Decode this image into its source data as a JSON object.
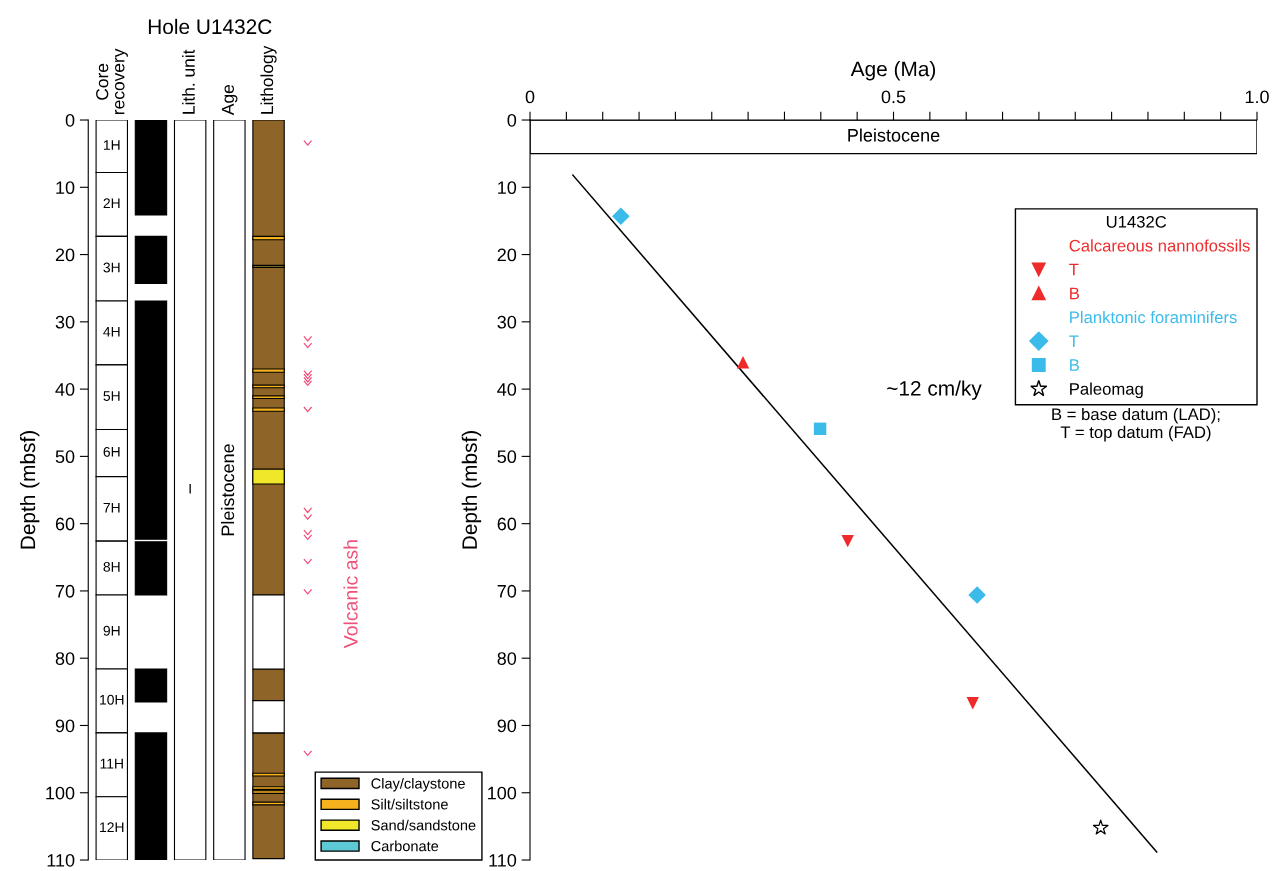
{
  "chart_data": [
    {
      "type": "bar",
      "title": "Hole U1432C",
      "ylabel": "Depth (mbsf)",
      "categories": [
        "Core\nrecovery",
        null,
        "Lith. unit",
        "Age",
        "Lithology",
        null
      ],
      "ylim": [
        110,
        0
      ],
      "yticks": [
        0,
        10,
        20,
        30,
        40,
        50,
        60,
        70,
        80,
        90,
        100,
        110
      ],
      "grid": false,
      "legend": "bottom right",
      "annotations": [
        "Volcanic ash",
        "1H",
        "2H",
        "3H",
        "4H",
        "5H",
        "6H",
        "7H",
        "8H",
        "9H",
        "10H",
        "11H",
        "12H"
      ],
      "series": [
        {
          "color": "#ffffff",
          "values": [
            7.8,
            null,
            null,
            null,
            null,
            null
          ],
          "base": [
            0,
            null,
            null,
            null,
            null,
            null
          ]
        },
        {
          "color": "#ffffff",
          "values": [
            9.5,
            null,
            null,
            null,
            null,
            null
          ],
          "base": [
            7.8,
            null,
            null,
            null,
            null,
            null
          ]
        },
        {
          "color": "#ffffff",
          "values": [
            9.6,
            null,
            null,
            null,
            null,
            null
          ],
          "base": [
            17.3,
            null,
            null,
            null,
            null,
            null
          ]
        },
        {
          "color": "#ffffff",
          "values": [
            9.5,
            null,
            null,
            null,
            null,
            null
          ],
          "base": [
            26.9,
            null,
            null,
            null,
            null,
            null
          ]
        },
        {
          "color": "#ffffff",
          "values": [
            9.6,
            null,
            null,
            null,
            null,
            null
          ],
          "base": [
            36.4,
            null,
            null,
            null,
            null,
            null
          ]
        },
        {
          "color": "#ffffff",
          "values": [
            7.0,
            null,
            null,
            null,
            null,
            null
          ],
          "base": [
            46.0,
            null,
            null,
            null,
            null,
            null
          ]
        },
        {
          "color": "#ffffff",
          "values": [
            9.6,
            null,
            null,
            null,
            null,
            null
          ],
          "base": [
            53.0,
            null,
            null,
            null,
            null,
            null
          ]
        },
        {
          "color": "#ffffff",
          "values": [
            8.0,
            null,
            null,
            null,
            null,
            null
          ],
          "base": [
            62.6,
            null,
            null,
            null,
            null,
            null
          ]
        },
        {
          "color": "#ffffff",
          "values": [
            11.0,
            null,
            null,
            null,
            null,
            null
          ],
          "base": [
            70.6,
            null,
            null,
            null,
            null,
            null
          ]
        },
        {
          "color": "#ffffff",
          "values": [
            9.5,
            null,
            null,
            null,
            null,
            null
          ],
          "base": [
            81.6,
            null,
            null,
            null,
            null,
            null
          ]
        },
        {
          "color": "#ffffff",
          "values": [
            9.5,
            null,
            null,
            null,
            null,
            null
          ],
          "base": [
            91.1,
            null,
            null,
            null,
            null,
            null
          ]
        },
        {
          "color": "#ffffff",
          "values": [
            9.4,
            null,
            null,
            null,
            null,
            null
          ],
          "base": [
            100.6,
            null,
            null,
            null,
            null,
            null
          ]
        },
        {
          "color": "#000000",
          "values": [
            null,
            14.1,
            null,
            null,
            null,
            null
          ],
          "base": [
            null,
            0,
            null,
            null,
            null,
            null
          ]
        },
        {
          "color": "#000000",
          "values": [
            null,
            7.0,
            null,
            null,
            null,
            null
          ],
          "base": [
            null,
            17.3,
            null,
            null,
            null,
            null
          ]
        },
        {
          "color": "#000000",
          "values": [
            null,
            35.4,
            null,
            null,
            null,
            null
          ],
          "base": [
            null,
            26.9,
            null,
            null,
            null,
            null
          ]
        },
        {
          "color": "#000000",
          "values": [
            null,
            7.9,
            null,
            null,
            null,
            null
          ],
          "base": [
            null,
            62.7,
            null,
            null,
            null,
            null
          ]
        },
        {
          "color": "#000000",
          "values": [
            null,
            4.9,
            null,
            null,
            null,
            null
          ],
          "base": [
            null,
            81.6,
            null,
            null,
            null,
            null
          ]
        },
        {
          "color": "#000000",
          "values": [
            null,
            18.9,
            null,
            null,
            null,
            null
          ],
          "base": [
            null,
            91.1,
            null,
            null,
            null,
            null
          ]
        },
        {
          "color": "#ffffff",
          "values": [
            null,
            null,
            110,
            null,
            null,
            null
          ],
          "base": [
            null,
            null,
            0,
            null,
            null,
            null
          ],
          "value_labels": [
            null,
            null,
            "I",
            null,
            null,
            null
          ]
        },
        {
          "color": "#ffffff",
          "values": [
            null,
            null,
            null,
            110,
            null,
            null
          ],
          "base": [
            null,
            null,
            null,
            0,
            null,
            null
          ],
          "value_labels": [
            null,
            null,
            null,
            "Pleistocene",
            null,
            null
          ]
        },
        {
          "name": "Clay/claystone",
          "color": "#8f6428",
          "values": [
            null,
            null,
            null,
            null,
            70.6,
            null
          ],
          "base": [
            null,
            null,
            null,
            null,
            0,
            null
          ]
        },
        {
          "color": "#8f6428",
          "values": [
            null,
            null,
            null,
            null,
            4.7,
            null
          ],
          "base": [
            null,
            null,
            null,
            null,
            81.6,
            null
          ]
        },
        {
          "color": "#8f6428",
          "values": [
            null,
            null,
            null,
            null,
            18.7,
            null
          ],
          "base": [
            null,
            null,
            null,
            null,
            91.1,
            null
          ]
        },
        {
          "color": "#ffffff",
          "values": [
            null,
            null,
            null,
            null,
            11.0,
            null
          ],
          "base": [
            null,
            null,
            null,
            null,
            70.6,
            null
          ]
        },
        {
          "color": "#ffffff",
          "values": [
            null,
            null,
            null,
            null,
            4.8,
            null
          ],
          "base": [
            null,
            null,
            null,
            null,
            86.3,
            null
          ]
        },
        {
          "name": "Silt/siltstone",
          "color": "#f5b21c",
          "values": [
            null,
            null,
            null,
            null,
            0.5,
            null
          ],
          "base": [
            null,
            null,
            null,
            null,
            17.3,
            null
          ]
        },
        {
          "color": "#8c8a2e",
          "values": [
            null,
            null,
            null,
            null,
            0.3,
            null
          ],
          "base": [
            null,
            null,
            null,
            null,
            21.6,
            null
          ]
        },
        {
          "color": "#f5b21c",
          "values": [
            null,
            null,
            null,
            null,
            0.5,
            null
          ],
          "base": [
            null,
            null,
            null,
            null,
            37.0,
            null
          ]
        },
        {
          "color": "#f5b21c",
          "values": [
            null,
            null,
            null,
            null,
            0.4,
            null
          ],
          "base": [
            null,
            null,
            null,
            null,
            39.4,
            null
          ]
        },
        {
          "color": "#f5b21c",
          "values": [
            null,
            null,
            null,
            null,
            0.4,
            null
          ],
          "base": [
            null,
            null,
            null,
            null,
            41.0,
            null
          ]
        },
        {
          "color": "#f5b21c",
          "values": [
            null,
            null,
            null,
            null,
            0.5,
            null
          ],
          "base": [
            null,
            null,
            null,
            null,
            42.8,
            null
          ]
        },
        {
          "name": "Sand/sandstone",
          "color": "#f0e62a",
          "values": [
            null,
            null,
            null,
            null,
            2.2,
            null
          ],
          "base": [
            null,
            null,
            null,
            null,
            51.9,
            null
          ]
        },
        {
          "color": "#f5b21c",
          "values": [
            null,
            null,
            null,
            null,
            0.4,
            null
          ],
          "base": [
            null,
            null,
            null,
            null,
            97.1,
            null
          ]
        },
        {
          "color": "#f5b21c",
          "values": [
            null,
            null,
            null,
            null,
            0.4,
            null
          ],
          "base": [
            null,
            null,
            null,
            null,
            99.1,
            null
          ]
        },
        {
          "color": "#f5b21c",
          "values": [
            null,
            null,
            null,
            null,
            0.4,
            null
          ],
          "base": [
            null,
            null,
            null,
            null,
            99.7,
            null
          ]
        },
        {
          "color": "#f5b21c",
          "values": [
            null,
            null,
            null,
            null,
            0.4,
            null
          ],
          "base": [
            null,
            null,
            null,
            null,
            101.4,
            null
          ]
        },
        {
          "name": "Carbonate",
          "color": "#5fc8d6",
          "values": [
            null,
            null,
            null,
            null,
            null,
            null
          ],
          "base": [
            null,
            null,
            null,
            null,
            null,
            null
          ]
        },
        {
          "type": "scatter",
          "color": "#f0507a",
          "values": [
            null,
            null,
            null,
            null,
            null,
            3.4
          ]
        },
        {
          "type": "scatter",
          "color": "#f0507a",
          "values": [
            null,
            null,
            null,
            null,
            null,
            32.5
          ]
        },
        {
          "type": "scatter",
          "color": "#f0507a",
          "values": [
            null,
            null,
            null,
            null,
            null,
            33.5
          ]
        },
        {
          "type": "scatter",
          "color": "#f0507a",
          "values": [
            null,
            null,
            null,
            null,
            null,
            37.6
          ]
        },
        {
          "type": "scatter",
          "color": "#f0507a",
          "values": [
            null,
            null,
            null,
            null,
            null,
            38.1
          ]
        },
        {
          "type": "scatter",
          "color": "#f0507a",
          "values": [
            null,
            null,
            null,
            null,
            null,
            38.6
          ]
        },
        {
          "type": "scatter",
          "color": "#f0507a",
          "values": [
            null,
            null,
            null,
            null,
            null,
            39.1
          ]
        },
        {
          "type": "scatter",
          "color": "#f0507a",
          "values": [
            null,
            null,
            null,
            null,
            null,
            43.0
          ]
        },
        {
          "type": "scatter",
          "color": "#f0507a",
          "values": [
            null,
            null,
            null,
            null,
            null,
            58.0
          ]
        },
        {
          "type": "scatter",
          "color": "#f0507a",
          "values": [
            null,
            null,
            null,
            null,
            null,
            59.0
          ]
        },
        {
          "type": "scatter",
          "color": "#f0507a",
          "values": [
            null,
            null,
            null,
            null,
            null,
            61.3
          ]
        },
        {
          "type": "scatter",
          "color": "#f0507a",
          "values": [
            null,
            null,
            null,
            null,
            null,
            62.0
          ]
        },
        {
          "type": "scatter",
          "color": "#f0507a",
          "values": [
            null,
            null,
            null,
            null,
            null,
            65.6
          ]
        },
        {
          "type": "scatter",
          "color": "#f0507a",
          "values": [
            null,
            null,
            null,
            null,
            null,
            70.1
          ]
        },
        {
          "type": "scatter",
          "color": "#f0507a",
          "values": [
            null,
            null,
            null,
            null,
            null,
            94.1
          ]
        }
      ]
    },
    {
      "type": "scatter",
      "xlabel": "Age (Ma)",
      "ylabel": "Depth (mbsf)",
      "legend_title": "U1432C",
      "legend": "top right",
      "grid": false,
      "xlim": [
        0,
        1.0
      ],
      "xticks": [
        0,
        {
          "value": 0.05,
          "label": null
        },
        {
          "value": 0.1,
          "label": null
        },
        {
          "value": 0.15,
          "label": null
        },
        {
          "value": 0.2,
          "label": null
        },
        {
          "value": 0.25,
          "label": null
        },
        {
          "value": 0.3,
          "label": null
        },
        {
          "value": 0.35,
          "label": null
        },
        {
          "value": 0.4,
          "label": null
        },
        {
          "value": 0.45,
          "label": null
        },
        0.5,
        {
          "value": 0.55,
          "label": null
        },
        {
          "value": 0.6,
          "label": null
        },
        {
          "value": 0.65,
          "label": null
        },
        {
          "value": 0.7,
          "label": null
        },
        {
          "value": 0.75,
          "label": null
        },
        {
          "value": 0.8,
          "label": null
        },
        {
          "value": 0.85,
          "label": null
        },
        {
          "value": 0.9,
          "label": null
        },
        {
          "value": 0.95,
          "label": null
        },
        {
          "value": 1.0,
          "label": "1.0"
        }
      ],
      "ylim": [
        110,
        0
      ],
      "yticks": [
        0,
        10,
        20,
        30,
        40,
        50,
        60,
        70,
        80,
        90,
        100,
        110
      ],
      "bands": [
        {
          "axis": "y",
          "from": 0,
          "to": 5,
          "label": "Pleistocene",
          "color": "#ffffff"
        }
      ],
      "annotations": [
        "~12 cm/ky",
        "Calcareous nannofossils",
        "Planktonic foraminifers",
        "B = base datum (LAD);\nT = top datum (FAD)"
      ],
      "series": [
        {
          "name": "T",
          "color": "#ee2a2a",
          "marker": "triangle_down",
          "x": [
            0.437,
            0.609
          ],
          "values": [
            62.6,
            86.7
          ]
        },
        {
          "name": "B",
          "color": "#ee2a2a",
          "marker": "triangle",
          "x": [
            0.293
          ],
          "values": [
            36.0
          ]
        },
        {
          "name": "T",
          "color": "#3bbbea",
          "marker": "diamond",
          "x": [
            0.125,
            0.615
          ],
          "values": [
            14.3,
            70.6
          ]
        },
        {
          "name": "B",
          "color": "#3bbbea",
          "marker": "square",
          "x": [
            0.399
          ],
          "values": [
            45.9
          ]
        },
        {
          "name": "Paleomag",
          "color": "#000000",
          "marker": "star",
          "x": [
            0.785
          ],
          "values": [
            105.2
          ]
        },
        {
          "type": "line",
          "color": "#000000",
          "x": [
            0.059,
            0.862
          ],
          "values": [
            8.2,
            108.8
          ]
        }
      ]
    }
  ]
}
